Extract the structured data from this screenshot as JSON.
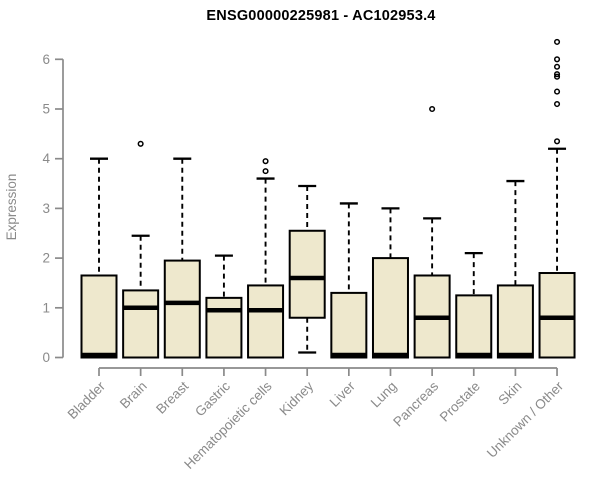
{
  "chart_data": {
    "type": "boxplot",
    "title": "ENSG00000225981 - AC102953.4",
    "ylabel": "Expression",
    "xlabel": "",
    "ylim": [
      0,
      6
    ],
    "yticks": [
      0,
      1,
      2,
      3,
      4,
      5,
      6
    ],
    "grid": false,
    "legend": false,
    "colors": {
      "box_fill": "#EEE8CD",
      "box_stroke": "#000000",
      "median": "#000000",
      "whisker": "#000000",
      "axis": "#8a8a8a",
      "label": "#8a8a8a",
      "title": "#000000",
      "background": "#ffffff"
    },
    "categories": [
      "Bladder",
      "Brain",
      "Breast",
      "Gastric",
      "Hematopoietic cells",
      "Kidney",
      "Liver",
      "Lung",
      "Pancreas",
      "Prostate",
      "Skin",
      "Unknown / Other"
    ],
    "series": [
      {
        "category": "Bladder",
        "whisker_low": 0,
        "q1": 0,
        "median": 0.05,
        "q3": 1.65,
        "whisker_high": 4.0,
        "outliers": []
      },
      {
        "category": "Brain",
        "whisker_low": 0,
        "q1": 0,
        "median": 1.0,
        "q3": 1.35,
        "whisker_high": 2.45,
        "outliers": [
          4.3
        ]
      },
      {
        "category": "Breast",
        "whisker_low": 0,
        "q1": 0,
        "median": 1.1,
        "q3": 1.95,
        "whisker_high": 4.0,
        "outliers": []
      },
      {
        "category": "Gastric",
        "whisker_low": 0,
        "q1": 0,
        "median": 0.95,
        "q3": 1.2,
        "whisker_high": 2.05,
        "outliers": []
      },
      {
        "category": "Hematopoietic cells",
        "whisker_low": 0,
        "q1": 0,
        "median": 0.95,
        "q3": 1.45,
        "whisker_high": 3.6,
        "outliers": [
          3.75,
          3.95
        ]
      },
      {
        "category": "Kidney",
        "whisker_low": 0.1,
        "q1": 0.8,
        "median": 1.6,
        "q3": 2.55,
        "whisker_high": 3.45,
        "outliers": []
      },
      {
        "category": "Liver",
        "whisker_low": 0,
        "q1": 0,
        "median": 0.05,
        "q3": 1.3,
        "whisker_high": 3.1,
        "outliers": []
      },
      {
        "category": "Lung",
        "whisker_low": 0,
        "q1": 0,
        "median": 0.05,
        "q3": 2.0,
        "whisker_high": 3.0,
        "outliers": []
      },
      {
        "category": "Pancreas",
        "whisker_low": 0,
        "q1": 0,
        "median": 0.8,
        "q3": 1.65,
        "whisker_high": 2.8,
        "outliers": [
          5.0
        ]
      },
      {
        "category": "Prostate",
        "whisker_low": 0,
        "q1": 0,
        "median": 0.05,
        "q3": 1.25,
        "whisker_high": 2.1,
        "outliers": []
      },
      {
        "category": "Skin",
        "whisker_low": 0,
        "q1": 0,
        "median": 0.05,
        "q3": 1.45,
        "whisker_high": 3.55,
        "outliers": []
      },
      {
        "category": "Unknown / Other",
        "whisker_low": 0,
        "q1": 0,
        "median": 0.8,
        "q3": 1.7,
        "whisker_high": 4.2,
        "outliers": [
          4.35,
          5.1,
          5.35,
          5.65,
          5.7,
          5.85,
          6.0,
          6.35
        ]
      }
    ]
  }
}
